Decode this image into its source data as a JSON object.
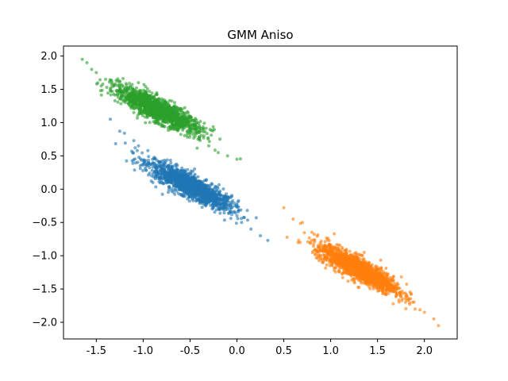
{
  "chart_data": {
    "type": "scatter",
    "title": "GMM Aniso",
    "xlabel": "",
    "ylabel": "",
    "xlim": [
      -1.85,
      2.35
    ],
    "ylim": [
      -2.25,
      2.15
    ],
    "xticks": [
      "-1.5",
      "-1.0",
      "-0.5",
      "0.0",
      "0.5",
      "1.0",
      "1.5",
      "2.0"
    ],
    "yticks": [
      "2.0",
      "1.5",
      "1.0",
      "0.5",
      "0.0",
      "−0.5",
      "−1.0",
      "−1.5",
      "−2.0"
    ],
    "grid": false,
    "series": [
      {
        "color": "#1f77b4",
        "point_count": 1500,
        "center": [
          -0.5,
          0.05
        ],
        "direction": [
          1.0,
          -0.78
        ],
        "spread_major": 0.27,
        "spread_minor": 0.07,
        "points": [
          [
            -1.35,
            1.05
          ],
          [
            -1.25,
            0.87
          ],
          [
            -1.2,
            0.84
          ],
          [
            -1.1,
            0.73
          ],
          [
            -1.05,
            0.65
          ],
          [
            -0.95,
            0.58
          ],
          [
            -0.9,
            0.45
          ],
          [
            -0.8,
            0.35
          ],
          [
            -0.7,
            0.3
          ],
          [
            -0.6,
            0.15
          ],
          [
            -0.5,
            0.05
          ],
          [
            -0.4,
            -0.02
          ],
          [
            -0.3,
            -0.12
          ],
          [
            -0.2,
            -0.22
          ],
          [
            -0.1,
            -0.3
          ],
          [
            0.0,
            -0.4
          ],
          [
            0.05,
            -0.5
          ],
          [
            0.15,
            -0.6
          ],
          [
            0.25,
            -0.7
          ],
          [
            0.33,
            -0.77
          ]
        ]
      },
      {
        "color": "#ff7f0e",
        "point_count": 1500,
        "center": [
          1.3,
          -1.2
        ],
        "direction": [
          1.0,
          -0.8
        ],
        "spread_major": 0.27,
        "spread_minor": 0.07,
        "points": [
          [
            0.5,
            -0.28
          ],
          [
            0.6,
            -0.45
          ],
          [
            0.7,
            -0.5
          ],
          [
            0.8,
            -0.65
          ],
          [
            0.9,
            -0.78
          ],
          [
            1.0,
            -0.85
          ],
          [
            1.1,
            -0.98
          ],
          [
            1.2,
            -1.08
          ],
          [
            1.3,
            -1.2
          ],
          [
            1.4,
            -1.3
          ],
          [
            1.5,
            -1.4
          ],
          [
            1.6,
            -1.45
          ],
          [
            1.7,
            -1.6
          ],
          [
            1.8,
            -1.7
          ],
          [
            1.9,
            -1.8
          ],
          [
            2.0,
            -1.85
          ],
          [
            2.1,
            -1.95
          ],
          [
            2.15,
            -2.05
          ]
        ]
      },
      {
        "color": "#2ca02c",
        "point_count": 1500,
        "center": [
          -0.85,
          1.2
        ],
        "direction": [
          1.0,
          -0.75
        ],
        "spread_major": 0.27,
        "spread_minor": 0.07,
        "points": [
          [
            -1.65,
            1.95
          ],
          [
            -1.6,
            1.9
          ],
          [
            -1.55,
            1.8
          ],
          [
            -1.5,
            1.75
          ],
          [
            -1.4,
            1.65
          ],
          [
            -1.3,
            1.58
          ],
          [
            -1.2,
            1.5
          ],
          [
            -1.1,
            1.38
          ],
          [
            -1.0,
            1.3
          ],
          [
            -0.9,
            1.22
          ],
          [
            -0.8,
            1.12
          ],
          [
            -0.7,
            1.05
          ],
          [
            -0.6,
            0.95
          ],
          [
            -0.5,
            0.85
          ],
          [
            -0.4,
            0.75
          ],
          [
            -0.3,
            0.65
          ],
          [
            -0.2,
            0.55
          ],
          [
            -0.1,
            0.5
          ],
          [
            0.0,
            0.45
          ]
        ]
      }
    ]
  }
}
